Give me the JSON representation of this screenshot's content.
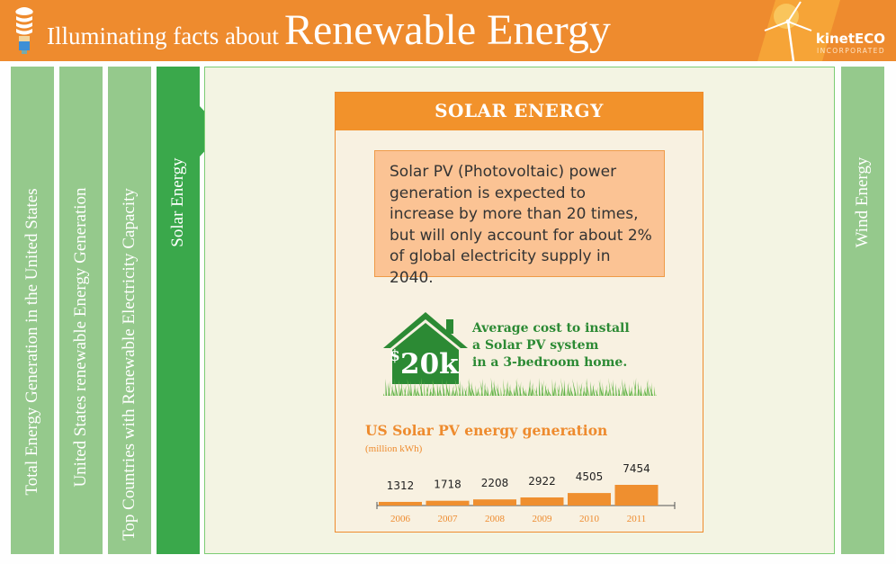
{
  "header": {
    "title_small": "Illuminating facts about",
    "title_big": "Renewable Energy",
    "brand_name": "kinetECO",
    "brand_sub": "INCORPORATED"
  },
  "tabs": [
    {
      "label": "Total Energy Generation in the United States",
      "active": false
    },
    {
      "label": "United States renewable Energy Generation",
      "active": false
    },
    {
      "label": "Top Countries with Renewable Electricity Capacity",
      "active": false
    },
    {
      "label": "Solar Energy",
      "active": true
    },
    {
      "label": "Wind Energy",
      "active": false
    }
  ],
  "card": {
    "title": "SOLAR ENERGY",
    "fact": "Solar PV (Photovoltaic) power generation is expected to increase by more than 20 times, but will only account for about 2% of global electricity supply in 2040.",
    "cost_badge_symbol": "$",
    "cost_badge_value": "20k",
    "cost_line1": "Average cost to install",
    "cost_line2": "a Solar PV system",
    "cost_line3": "in a 3-bedroom home."
  },
  "colors": {
    "orange": "#ee8b2e",
    "green": "#3aa84b",
    "tab_green": "#95c98c",
    "text_green": "#2c8a34"
  },
  "chart_data": {
    "type": "bar",
    "title": "US Solar PV energy generation",
    "unit": "(million kWh)",
    "categories": [
      "2006",
      "2007",
      "2008",
      "2009",
      "2010",
      "2011"
    ],
    "values": [
      1312,
      1718,
      2208,
      2922,
      4505,
      7454
    ]
  }
}
